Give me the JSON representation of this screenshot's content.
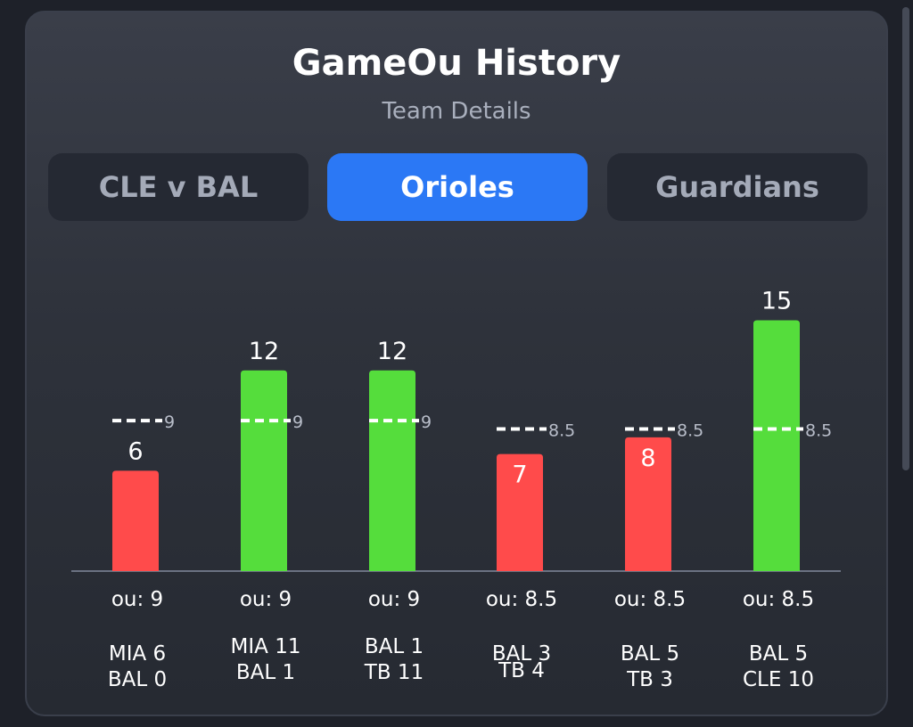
{
  "header": {
    "title": "GameOu History",
    "subtitle": "Team Details"
  },
  "tabs": [
    {
      "label": "CLE v BAL",
      "active": false
    },
    {
      "label": "Orioles",
      "active": true
    },
    {
      "label": "Guardians",
      "active": false
    }
  ],
  "colors": {
    "over": "#55dd3c",
    "under": "#ff4b4b",
    "active_tab": "#2b78f5",
    "line_marker": "#ffffff"
  },
  "chart_data": {
    "type": "bar",
    "ylim": [
      0,
      18.7
    ],
    "categories": [
      "MIA 6 BAL 0",
      "MIA 11 BAL 1",
      "BAL 1 TB 11",
      "BAL 3 TB 4",
      "BAL 5 TB 3",
      "BAL 5 CLE 10"
    ],
    "games": [
      {
        "total": 6,
        "ou": 9,
        "ou_label": "ou: 9",
        "ou_value_label": "9",
        "score_lines": [
          "MIA 6",
          "BAL 0"
        ],
        "result": "under"
      },
      {
        "total": 12,
        "ou": 9,
        "ou_label": "ou: 9",
        "ou_value_label": "9",
        "score_lines": [
          "MIA 11",
          "BAL 1"
        ],
        "result": "over"
      },
      {
        "total": 12,
        "ou": 9,
        "ou_label": "ou: 9",
        "ou_value_label": "9",
        "score_lines": [
          "BAL 1",
          "TB 11"
        ],
        "result": "over"
      },
      {
        "total": 7,
        "ou": 8.5,
        "ou_label": "ou: 8.5",
        "ou_value_label": "8.5",
        "score_lines": [
          "BAL 3",
          "TB 4"
        ],
        "result": "under"
      },
      {
        "total": 8,
        "ou": 8.5,
        "ou_label": "ou: 8.5",
        "ou_value_label": "8.5",
        "score_lines": [
          "BAL 5",
          "TB 3"
        ],
        "result": "under"
      },
      {
        "total": 15,
        "ou": 8.5,
        "ou_label": "ou: 8.5",
        "ou_value_label": "8.5",
        "score_lines": [
          "BAL 5",
          "CLE 10"
        ],
        "result": "over"
      }
    ]
  }
}
